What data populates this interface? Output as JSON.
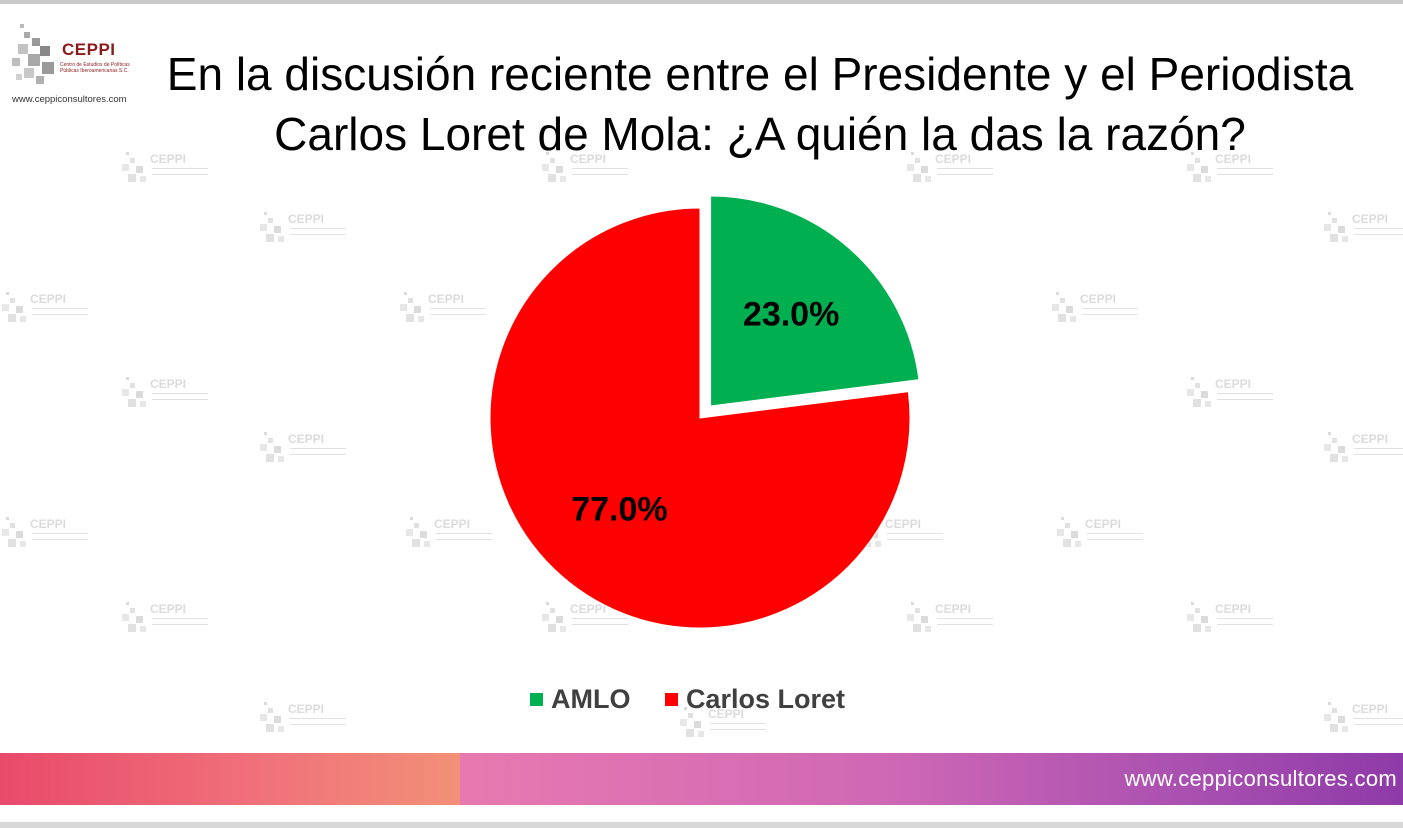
{
  "logo": {
    "name": "CEPPI",
    "subtitle_line1": "Centro de Estudios de Políticas",
    "subtitle_line2": "Públicas Iberoamericanas S.C.",
    "url": "www.ceppiconsultores.com"
  },
  "title": "En la discusión reciente entre el Presidente y el Periodista Carlos Loret de Mola: ¿A quién la das la razón?",
  "watermark_text": "CEPPI",
  "chart_data": {
    "type": "pie",
    "title": "En la discusión reciente entre el Presidente y el Periodista Carlos Loret de Mola: ¿A quién la das la razón?",
    "labels": [
      "AMLO",
      "Carlos Loret"
    ],
    "values": [
      23.0,
      77.0
    ],
    "data_labels": [
      "23.0%",
      "77.0%"
    ],
    "colors": [
      "#00b050",
      "#ff0000"
    ],
    "exploded": [
      "AMLO"
    ],
    "legend_position": "bottom"
  },
  "footer": {
    "url": "www.ceppiconsultores.com"
  }
}
